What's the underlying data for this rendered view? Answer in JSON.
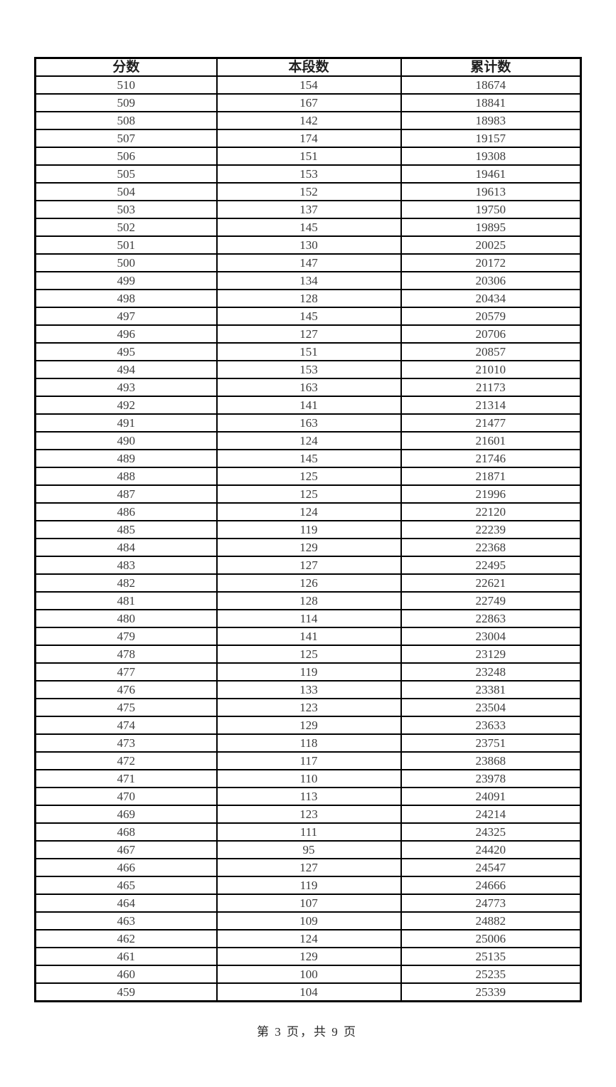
{
  "page": {
    "background_color": "#ffffff",
    "border_color": "#000000",
    "footer_text": "第 3 页，共 9 页",
    "page_number": 3,
    "total_pages": 9
  },
  "table": {
    "columns": [
      "分数",
      "本段数",
      "累计数"
    ],
    "rows": [
      [
        510,
        154,
        18674
      ],
      [
        509,
        167,
        18841
      ],
      [
        508,
        142,
        18983
      ],
      [
        507,
        174,
        19157
      ],
      [
        506,
        151,
        19308
      ],
      [
        505,
        153,
        19461
      ],
      [
        504,
        152,
        19613
      ],
      [
        503,
        137,
        19750
      ],
      [
        502,
        145,
        19895
      ],
      [
        501,
        130,
        20025
      ],
      [
        500,
        147,
        20172
      ],
      [
        499,
        134,
        20306
      ],
      [
        498,
        128,
        20434
      ],
      [
        497,
        145,
        20579
      ],
      [
        496,
        127,
        20706
      ],
      [
        495,
        151,
        20857
      ],
      [
        494,
        153,
        21010
      ],
      [
        493,
        163,
        21173
      ],
      [
        492,
        141,
        21314
      ],
      [
        491,
        163,
        21477
      ],
      [
        490,
        124,
        21601
      ],
      [
        489,
        145,
        21746
      ],
      [
        488,
        125,
        21871
      ],
      [
        487,
        125,
        21996
      ],
      [
        486,
        124,
        22120
      ],
      [
        485,
        119,
        22239
      ],
      [
        484,
        129,
        22368
      ],
      [
        483,
        127,
        22495
      ],
      [
        482,
        126,
        22621
      ],
      [
        481,
        128,
        22749
      ],
      [
        480,
        114,
        22863
      ],
      [
        479,
        141,
        23004
      ],
      [
        478,
        125,
        23129
      ],
      [
        477,
        119,
        23248
      ],
      [
        476,
        133,
        23381
      ],
      [
        475,
        123,
        23504
      ],
      [
        474,
        129,
        23633
      ],
      [
        473,
        118,
        23751
      ],
      [
        472,
        117,
        23868
      ],
      [
        471,
        110,
        23978
      ],
      [
        470,
        113,
        24091
      ],
      [
        469,
        123,
        24214
      ],
      [
        468,
        111,
        24325
      ],
      [
        467,
        95,
        24420
      ],
      [
        466,
        127,
        24547
      ],
      [
        465,
        119,
        24666
      ],
      [
        464,
        107,
        24773
      ],
      [
        463,
        109,
        24882
      ],
      [
        462,
        124,
        25006
      ],
      [
        461,
        129,
        25135
      ],
      [
        460,
        100,
        25235
      ],
      [
        459,
        104,
        25339
      ]
    ]
  }
}
